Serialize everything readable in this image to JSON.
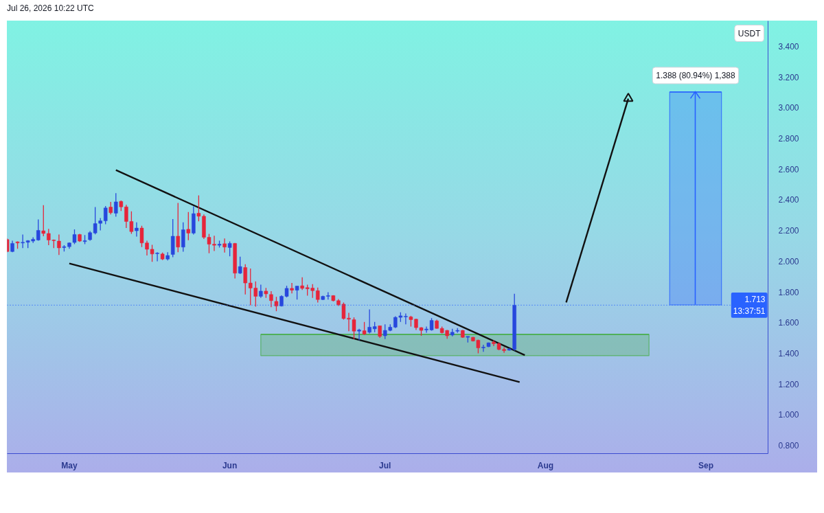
{
  "chart_data": {
    "type": "candlestick",
    "title": "Jul 26, 2026 10:22 UTC",
    "ylabel": "USDT",
    "x": [
      "2026-04-19",
      "2026-04-20",
      "2026-04-21",
      "2026-04-22",
      "2026-04-23",
      "2026-04-24",
      "2026-04-25",
      "2026-04-26",
      "2026-04-27",
      "2026-04-28",
      "2026-04-29",
      "2026-04-30",
      "2026-05-01",
      "2026-05-02",
      "2026-05-03",
      "2026-05-04",
      "2026-05-05",
      "2026-05-06",
      "2026-05-07",
      "2026-05-08",
      "2026-05-09",
      "2026-05-10",
      "2026-05-11",
      "2026-05-12",
      "2026-05-13",
      "2026-05-14",
      "2026-05-15",
      "2026-05-16",
      "2026-05-17",
      "2026-05-18",
      "2026-05-19",
      "2026-05-20",
      "2026-05-21",
      "2026-05-22",
      "2026-05-23",
      "2026-05-24",
      "2026-05-25",
      "2026-05-26",
      "2026-05-27",
      "2026-05-28",
      "2026-05-29",
      "2026-05-30",
      "2026-05-31",
      "2026-06-01",
      "2026-06-02",
      "2026-06-03",
      "2026-06-04",
      "2026-06-05",
      "2026-06-06",
      "2026-06-07",
      "2026-06-08",
      "2026-06-09",
      "2026-06-10",
      "2026-06-11",
      "2026-06-12",
      "2026-06-13",
      "2026-06-14",
      "2026-06-15",
      "2026-06-16",
      "2026-06-17",
      "2026-06-18",
      "2026-06-19",
      "2026-06-20",
      "2026-06-21",
      "2026-06-22",
      "2026-06-23",
      "2026-06-24",
      "2026-06-25",
      "2026-06-26",
      "2026-06-27",
      "2026-06-28",
      "2026-06-29",
      "2026-06-30",
      "2026-07-01",
      "2026-07-02",
      "2026-07-03",
      "2026-07-04",
      "2026-07-05",
      "2026-07-06",
      "2026-07-07",
      "2026-07-08",
      "2026-07-09",
      "2026-07-10",
      "2026-07-11",
      "2026-07-12",
      "2026-07-13",
      "2026-07-14",
      "2026-07-15",
      "2026-07-16",
      "2026-07-17",
      "2026-07-18",
      "2026-07-19",
      "2026-07-20",
      "2026-07-21",
      "2026-07-22",
      "2026-07-23",
      "2026-07-24",
      "2026-07-25",
      "2026-07-26"
    ],
    "ohlc": [
      [
        2.141,
        2.148,
        2.059,
        2.063
      ],
      [
        2.063,
        2.134,
        2.059,
        2.116
      ],
      [
        2.126,
        2.129,
        2.081,
        2.119
      ],
      [
        2.119,
        2.174,
        2.086,
        2.123
      ],
      [
        2.123,
        2.137,
        2.086,
        2.134
      ],
      [
        2.131,
        2.156,
        2.119,
        2.143
      ],
      [
        2.138,
        2.272,
        2.134,
        2.201
      ],
      [
        2.198,
        2.365,
        2.163,
        2.181
      ],
      [
        2.181,
        2.211,
        2.104,
        2.138
      ],
      [
        2.138,
        2.141,
        2.086,
        2.134
      ],
      [
        2.131,
        2.174,
        2.041,
        2.087
      ],
      [
        2.089,
        2.104,
        2.063,
        2.095
      ],
      [
        2.095,
        2.122,
        2.081,
        2.119
      ],
      [
        2.122,
        2.208,
        2.111,
        2.174
      ],
      [
        2.174,
        2.178,
        2.126,
        2.131
      ],
      [
        2.128,
        2.171,
        2.111,
        2.134
      ],
      [
        2.14,
        2.196,
        2.134,
        2.186
      ],
      [
        2.184,
        2.353,
        2.175,
        2.245
      ],
      [
        2.247,
        2.281,
        2.201,
        2.263
      ],
      [
        2.263,
        2.36,
        2.241,
        2.347
      ],
      [
        2.353,
        2.387,
        2.305,
        2.316
      ],
      [
        2.313,
        2.444,
        2.29,
        2.387
      ],
      [
        2.39,
        2.395,
        2.327,
        2.354
      ],
      [
        2.354,
        2.368,
        2.216,
        2.259
      ],
      [
        2.259,
        2.325,
        2.178,
        2.193
      ],
      [
        2.198,
        2.253,
        2.16,
        2.216
      ],
      [
        2.216,
        2.231,
        2.092,
        2.119
      ],
      [
        2.119,
        2.134,
        2.037,
        2.078
      ],
      [
        2.078,
        2.107,
        1.996,
        2.047
      ],
      [
        2.049,
        2.059,
        1.999,
        2.053
      ],
      [
        2.047,
        2.056,
        2.007,
        2.014
      ],
      [
        2.014,
        2.059,
        2.005,
        2.037
      ],
      [
        2.044,
        2.275,
        2.026,
        2.163
      ],
      [
        2.163,
        2.38,
        2.059,
        2.092
      ],
      [
        2.092,
        2.253,
        2.062,
        2.205
      ],
      [
        2.208,
        2.32,
        2.137,
        2.183
      ],
      [
        2.183,
        2.357,
        2.174,
        2.31
      ],
      [
        2.313,
        2.429,
        2.26,
        2.293
      ],
      [
        2.293,
        2.305,
        2.145,
        2.156
      ],
      [
        2.156,
        2.178,
        2.052,
        2.111
      ],
      [
        2.111,
        2.166,
        2.066,
        2.104
      ],
      [
        2.104,
        2.134,
        2.089,
        2.111
      ],
      [
        2.114,
        2.148,
        2.056,
        2.092
      ],
      [
        2.089,
        2.129,
        2.032,
        2.116
      ],
      [
        2.116,
        2.119,
        1.887,
        1.922
      ],
      [
        1.922,
        2.029,
        1.917,
        1.965
      ],
      [
        1.959,
        1.98,
        1.783,
        1.858
      ],
      [
        1.858,
        1.952,
        1.713,
        1.825
      ],
      [
        1.825,
        1.868,
        1.704,
        1.771
      ],
      [
        1.771,
        1.847,
        1.761,
        1.805
      ],
      [
        1.805,
        1.826,
        1.761,
        1.787
      ],
      [
        1.783,
        1.805,
        1.701,
        1.743
      ],
      [
        1.738,
        1.768,
        1.674,
        1.708
      ],
      [
        1.708,
        1.778,
        1.705,
        1.771
      ],
      [
        1.771,
        1.84,
        1.764,
        1.823
      ],
      [
        1.823,
        1.858,
        1.79,
        1.811
      ],
      [
        1.811,
        1.838,
        1.75,
        1.838
      ],
      [
        1.84,
        1.895,
        1.813,
        1.823
      ],
      [
        1.828,
        1.847,
        1.775,
        1.82
      ],
      [
        1.825,
        1.85,
        1.761,
        1.808
      ],
      [
        1.808,
        1.828,
        1.731,
        1.75
      ],
      [
        1.75,
        1.776,
        1.746,
        1.771
      ],
      [
        1.771,
        1.798,
        1.75,
        1.776
      ],
      [
        1.776,
        1.778,
        1.738,
        1.743
      ],
      [
        1.743,
        1.753,
        1.708,
        1.716
      ],
      [
        1.72,
        1.731,
        1.619,
        1.626
      ],
      [
        1.629,
        1.664,
        1.544,
        1.622
      ],
      [
        1.619,
        1.634,
        1.492,
        1.544
      ],
      [
        1.544,
        1.559,
        1.485,
        1.552
      ],
      [
        1.547,
        1.604,
        1.519,
        1.525
      ],
      [
        1.537,
        1.686,
        1.529,
        1.57
      ],
      [
        1.559,
        1.604,
        1.537,
        1.574
      ],
      [
        1.579,
        1.579,
        1.5,
        1.51
      ],
      [
        1.514,
        1.589,
        1.492,
        1.549
      ],
      [
        1.549,
        1.589,
        1.544,
        1.57
      ],
      [
        1.57,
        1.641,
        1.564,
        1.634
      ],
      [
        1.634,
        1.667,
        1.604,
        1.644
      ],
      [
        1.637,
        1.659,
        1.589,
        1.641
      ],
      [
        1.637,
        1.644,
        1.574,
        1.619
      ],
      [
        1.622,
        1.626,
        1.552,
        1.567
      ],
      [
        1.567,
        1.57,
        1.514,
        1.549
      ],
      [
        1.552,
        1.574,
        1.534,
        1.558
      ],
      [
        1.552,
        1.629,
        1.547,
        1.614
      ],
      [
        1.611,
        1.619,
        1.559,
        1.562
      ],
      [
        1.562,
        1.574,
        1.529,
        1.534
      ],
      [
        1.549,
        1.552,
        1.495,
        1.514
      ],
      [
        1.519,
        1.559,
        1.51,
        1.537
      ],
      [
        1.544,
        1.564,
        1.534,
        1.549
      ],
      [
        1.549,
        1.552,
        1.5,
        1.504
      ],
      [
        1.504,
        1.51,
        1.47,
        1.51
      ],
      [
        1.504,
        1.507,
        1.477,
        1.48
      ],
      [
        1.485,
        1.489,
        1.4,
        1.435
      ],
      [
        1.435,
        1.455,
        1.41,
        1.44
      ],
      [
        1.443,
        1.47,
        1.44,
        1.468
      ],
      [
        1.473,
        1.485,
        1.447,
        1.462
      ],
      [
        1.462,
        1.47,
        1.42,
        1.425
      ],
      [
        1.425,
        1.44,
        1.403,
        1.417
      ],
      [
        1.42,
        1.432,
        1.417,
        1.429
      ],
      [
        1.425,
        1.788,
        1.417,
        1.713
      ]
    ],
    "colors": [
      "#e6253a",
      "#2747dd",
      "#e6253a",
      "#2747dd",
      "#2747dd",
      "#2747dd",
      "#2747dd",
      "#e6253a",
      "#e6253a",
      "#e6253a",
      "#e6253a",
      "#2747dd",
      "#2747dd",
      "#2747dd",
      "#e6253a",
      "#2747dd",
      "#2747dd",
      "#2747dd",
      "#2747dd",
      "#2747dd",
      "#e6253a",
      "#2747dd",
      "#e6253a",
      "#e6253a",
      "#e6253a",
      "#2747dd",
      "#e6253a",
      "#e6253a",
      "#e6253a",
      "#2747dd",
      "#e6253a",
      "#2747dd",
      "#2747dd",
      "#e6253a",
      "#2747dd",
      "#e6253a",
      "#2747dd",
      "#e6253a",
      "#e6253a",
      "#e6253a",
      "#e6253a",
      "#2747dd",
      "#e6253a",
      "#2747dd",
      "#e6253a",
      "#2747dd",
      "#e6253a",
      "#e6253a",
      "#e6253a",
      "#2747dd",
      "#e6253a",
      "#e6253a",
      "#e6253a",
      "#2747dd",
      "#2747dd",
      "#e6253a",
      "#2747dd",
      "#e6253a",
      "#e6253a",
      "#e6253a",
      "#e6253a",
      "#2747dd",
      "#2747dd",
      "#e6253a",
      "#e6253a",
      "#e6253a",
      "#e6253a",
      "#e6253a",
      "#2747dd",
      "#e6253a",
      "#2747dd",
      "#2747dd",
      "#e6253a",
      "#2747dd",
      "#2747dd",
      "#2747dd",
      "#2747dd",
      "#2747dd",
      "#e6253a",
      "#e6253a",
      "#e6253a",
      "#2747dd",
      "#2747dd",
      "#e6253a",
      "#e6253a",
      "#e6253a",
      "#2747dd",
      "#2747dd",
      "#e6253a",
      "#2747dd",
      "#e6253a",
      "#e6253a",
      "#2747dd",
      "#2747dd",
      "#e6253a",
      "#e6253a",
      "#e6253a",
      "#2747dd",
      "#2747dd"
    ],
    "series": [
      {
        "type": "line",
        "x": [
          "2026-06-07",
          "2026-08-21"
        ],
        "values": [
          1.523,
          1.523
        ],
        "lower": [
          1.384,
          1.384
        ],
        "upper": [
          1.523,
          1.523
        ],
        "color": "#4caf50"
      },
      {
        "type": "line",
        "x": [
          "2026-08-25",
          "2026-09-04"
        ],
        "values": [
          3.103,
          3.103
        ],
        "lower": [
          1.715,
          1.715
        ],
        "upper": [
          3.103,
          3.103
        ],
        "color": "#2962ff"
      },
      {
        "type": "line",
        "x": [
          "2026-05-10",
          "2026-07-28"
        ],
        "values": [
          2.594,
          1.388
        ],
        "color": "#111111"
      },
      {
        "type": "line",
        "x": [
          "2026-05-01",
          "2026-07-27"
        ],
        "values": [
          1.985,
          1.212
        ],
        "color": "#111111"
      },
      {
        "type": "line",
        "x": [
          "2026-08-05",
          "2026-08-17"
        ],
        "values": [
          1.731,
          3.06
        ],
        "color": "#111111"
      },
      {
        "type": "scatter",
        "x": [
          "2026-08-17"
        ],
        "values": [
          3.06
        ],
        "color": "#111111",
        "marker": "triangle"
      }
    ],
    "ref_lines": [
      {
        "axis": "y",
        "value": 1.713,
        "label": "1.713\n13:37:51",
        "color": "#2962ff",
        "line_style": "dotted"
      }
    ],
    "annotations": [
      {
        "text": "1.388 (80.94%) 1,388",
        "x": "2026-08-30",
        "y": 3.103
      }
    ],
    "xlim": [
      "2026-04-19",
      "2026-09-13"
    ],
    "xticks": [
      {
        "value": "2026-05-01",
        "label": "May"
      },
      {
        "value": "2026-06-01",
        "label": "Jun"
      },
      {
        "value": "2026-07-01",
        "label": "Jul"
      },
      {
        "value": "2026-08-01",
        "label": "Aug"
      },
      {
        "value": "2026-09-01",
        "label": "Sep"
      }
    ],
    "ylim": [
      0.746,
      3.566
    ],
    "yticks": [
      {
        "value": 0.8,
        "label": "0.800"
      },
      {
        "value": 1.0,
        "label": "1.000"
      },
      {
        "value": 1.2,
        "label": "1.200"
      },
      {
        "value": 1.4,
        "label": "1.400"
      },
      {
        "value": 1.6,
        "label": "1.600"
      },
      {
        "value": 1.8,
        "label": "1.800"
      },
      {
        "value": 2.0,
        "label": "2.000"
      },
      {
        "value": 2.2,
        "label": "2.200"
      },
      {
        "value": 2.4,
        "label": "2.400"
      },
      {
        "value": 2.6,
        "label": "2.600"
      },
      {
        "value": 2.8,
        "label": "2.800"
      },
      {
        "value": 3.0,
        "label": "3.000"
      },
      {
        "value": 3.2,
        "label": "3.200"
      },
      {
        "value": 3.4,
        "label": "3.400"
      }
    ]
  }
}
